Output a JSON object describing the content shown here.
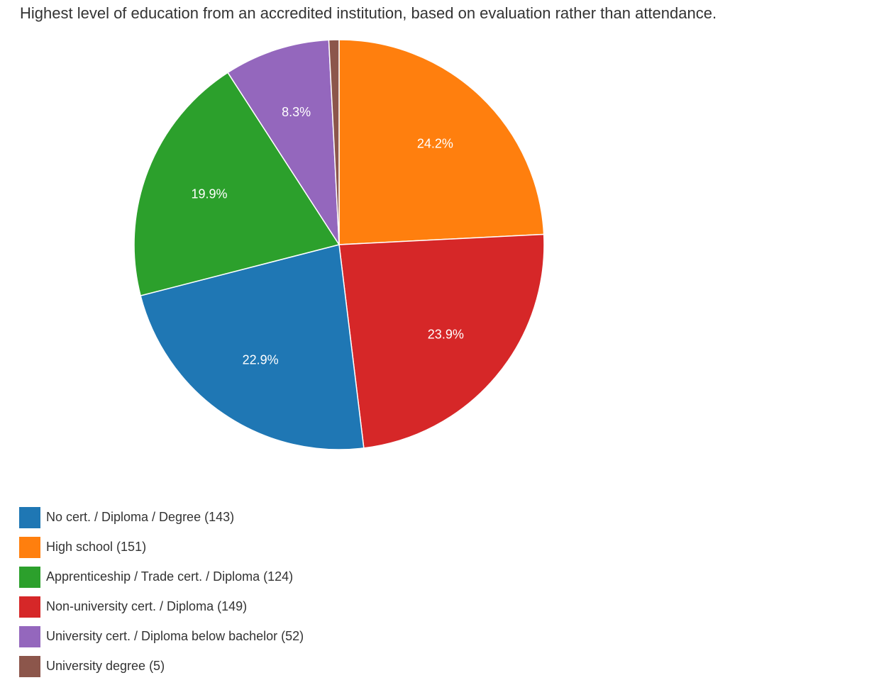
{
  "chart_data": {
    "type": "pie",
    "title": "Highest level of education from an accredited institution, based on evaluation rather than attendance.",
    "slices": [
      {
        "label": "No cert. / Diploma / Degree (143)",
        "value": 143,
        "percent_label": "22.9%",
        "color": "#1f77b4"
      },
      {
        "label": "High school (151)",
        "value": 151,
        "percent_label": "24.2%",
        "color": "#ff7f0e"
      },
      {
        "label": "Apprenticeship / Trade cert. / Diploma (124)",
        "value": 124,
        "percent_label": "19.9%",
        "color": "#2ca02c"
      },
      {
        "label": "Non-university cert. / Diploma (149)",
        "value": 149,
        "percent_label": "23.9%",
        "color": "#d62728"
      },
      {
        "label": "University cert. / Diploma below bachelor (52)",
        "value": 52,
        "percent_label": "8.3%",
        "color": "#9467bd"
      },
      {
        "label": "University degree (5)",
        "value": 5,
        "percent_label": "",
        "color": "#8c564b"
      }
    ],
    "legend_position": "bottom-left"
  }
}
